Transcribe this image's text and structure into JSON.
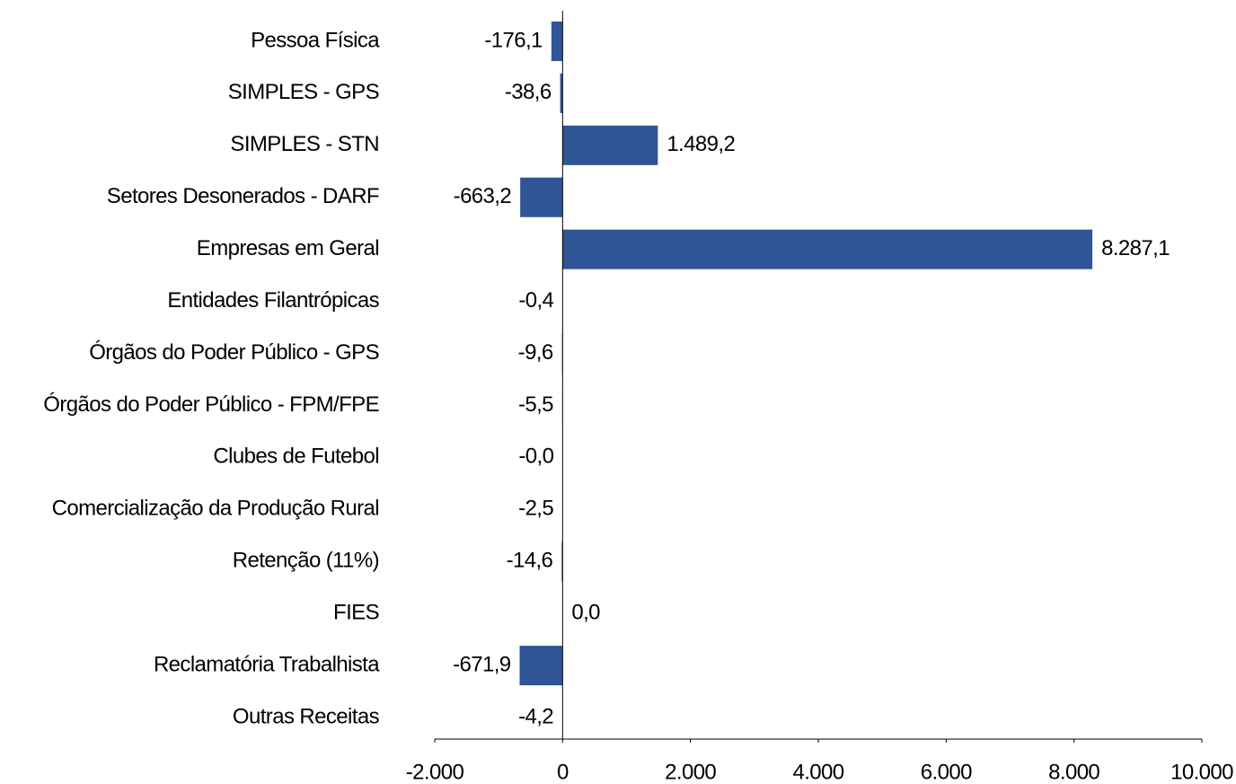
{
  "chart_data": {
    "type": "hbar",
    "categories": [
      "Pessoa Física",
      "SIMPLES - GPS",
      "SIMPLES - STN",
      "Setores Desonerados - DARF",
      "Empresas em Geral",
      "Entidades Filantrópicas",
      "Órgãos do Poder Público - GPS",
      "Órgãos do Poder Público - FPM/FPE",
      "Clubes de Futebol",
      "Comercialização da Produção Rural",
      "Retenção (11%)",
      "FIES",
      "Reclamatória Trabalhista",
      "Outras Receitas"
    ],
    "values": [
      -176.1,
      -38.6,
      1489.2,
      -663.2,
      8287.1,
      -0.4,
      -9.6,
      -5.5,
      -0.0,
      -2.5,
      -14.6,
      0.0,
      -671.9,
      -4.2
    ],
    "value_labels": [
      "-176,1",
      "-38,6",
      "1.489,2",
      "-663,2",
      "8.287,1",
      "-0,4",
      "-9,6",
      "-5,5",
      "-0,0",
      "-2,5",
      "-14,6",
      "0,0",
      "-671,9",
      "-4,2"
    ],
    "color": "#2f5597",
    "xlim": [
      -2000,
      10000
    ],
    "xticks": [
      {
        "value": -2000,
        "label": "-2.000"
      },
      0,
      {
        "value": 2000,
        "label": "2.000"
      },
      {
        "value": 4000,
        "label": "4.000"
      },
      {
        "value": 6000,
        "label": "6.000"
      },
      {
        "value": 8000,
        "label": "8.000"
      },
      {
        "value": 10000,
        "label": "10.000"
      }
    ],
    "grid": false
  }
}
